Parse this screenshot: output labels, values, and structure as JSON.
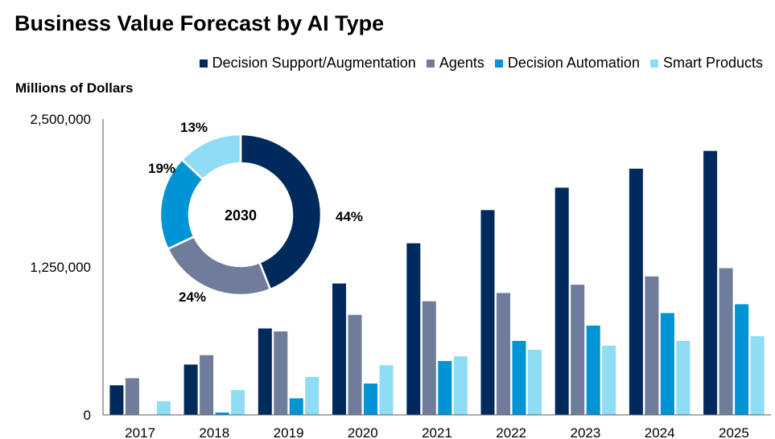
{
  "chart_data": [
    {
      "type": "bar",
      "title": "Business Value Forecast by AI Type",
      "ylabel": "Millions of Dollars",
      "ylim": [
        0,
        2500000
      ],
      "yticks": [
        "0",
        "1,250,000",
        "2,500,000"
      ],
      "ytick_values": [
        0,
        1250000,
        2500000
      ],
      "categories": [
        "2017",
        "2018",
        "2019",
        "2020",
        "2021",
        "2022",
        "2023",
        "2024",
        "2025"
      ],
      "legend_position": "top-right",
      "grid": false,
      "series": [
        {
          "name": "Decision Support/Augmentation",
          "color": "#002a5c",
          "values": [
            250000,
            425000,
            730000,
            1110000,
            1450000,
            1730000,
            1920000,
            2080000,
            2230000
          ]
        },
        {
          "name": "Agents",
          "color": "#6f7d9b",
          "values": [
            310000,
            505000,
            705000,
            845000,
            960000,
            1030000,
            1100000,
            1170000,
            1240000
          ]
        },
        {
          "name": "Decision Automation",
          "color": "#0094d4",
          "values": [
            0,
            20000,
            140000,
            265000,
            455000,
            625000,
            755000,
            860000,
            935000
          ]
        },
        {
          "name": "Smart Products",
          "color": "#8fdcf5",
          "values": [
            115000,
            210000,
            320000,
            420000,
            495000,
            550000,
            585000,
            625000,
            665000
          ]
        }
      ]
    },
    {
      "type": "pie",
      "donut": true,
      "center_label": "2030",
      "slices": [
        {
          "name": "Decision Support/Augmentation",
          "value": 44,
          "label": "44%",
          "color": "#002a5c"
        },
        {
          "name": "Agents",
          "value": 24,
          "label": "24%",
          "color": "#6f7d9b"
        },
        {
          "name": "Decision Automation",
          "value": 19,
          "label": "19%",
          "color": "#0094d4"
        },
        {
          "name": "Smart Products",
          "value": 13,
          "label": "13%",
          "color": "#8fdcf5"
        }
      ]
    }
  ]
}
